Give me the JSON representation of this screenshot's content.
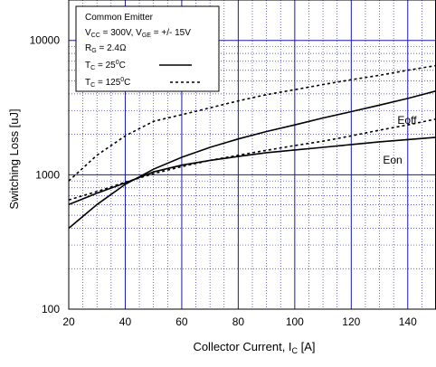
{
  "chart_data": {
    "type": "line",
    "title": "",
    "xlabel": "Collector Current, I",
    "xlabel_sub": "C",
    "xlabel_unit": " [A]",
    "ylabel": "Switching Loss [uJ]",
    "xlim": [
      20,
      150
    ],
    "ylim": [
      100,
      20000
    ],
    "yscale": "log",
    "grid": true,
    "x_ticks": [
      20,
      40,
      60,
      80,
      100,
      120,
      140
    ],
    "x_tick_labels": [
      "20",
      "40",
      "60",
      "80",
      "100",
      "120",
      "140"
    ],
    "y_ticks": [
      100,
      1000,
      10000
    ],
    "y_tick_labels": [
      "100",
      "1000",
      "10000"
    ],
    "legend": {
      "placement": "top-left",
      "title": "Common Emitter",
      "condition_1": {
        "vcc_pre": "V",
        "vcc_sub": "CC",
        "vcc_mid": " = 300V, V",
        "vge_sub": "GE",
        "vge_post": " = +/- 15V"
      },
      "condition_2": {
        "pre": "R",
        "sub": "G",
        "post": " = 2.4Ω"
      },
      "entry_solid": {
        "pre": "T",
        "sub": "C",
        "mid": " = 25",
        "sup": "0",
        "post": "C"
      },
      "entry_dashed": {
        "pre": "T",
        "sub": "C",
        "mid": " = 125",
        "sup": "0",
        "post": "C"
      }
    },
    "annotations": {
      "eoff": "Eoff",
      "eon": "Eon"
    },
    "series": [
      {
        "group": "Eoff",
        "condition": "25C",
        "style": "solid",
        "x": [
          20,
          30,
          40,
          50,
          60,
          70,
          80,
          90,
          100,
          110,
          120,
          130,
          140,
          150
        ],
        "y": [
          400,
          600,
          850,
          1100,
          1350,
          1600,
          1850,
          2100,
          2350,
          2650,
          2950,
          3300,
          3700,
          4200
        ]
      },
      {
        "group": "Eoff",
        "condition": "125C",
        "style": "dashed",
        "x": [
          20,
          30,
          40,
          50,
          60,
          70,
          80,
          90,
          100,
          110,
          120,
          130,
          140,
          150
        ],
        "y": [
          900,
          1400,
          1950,
          2500,
          2800,
          3150,
          3550,
          3950,
          4300,
          4700,
          5100,
          5500,
          6000,
          6500
        ]
      },
      {
        "group": "Eon",
        "condition": "25C",
        "style": "solid",
        "x": [
          20,
          30,
          40,
          50,
          60,
          70,
          80,
          90,
          100,
          110,
          120,
          130,
          140,
          150
        ],
        "y": [
          600,
          730,
          870,
          1050,
          1180,
          1280,
          1370,
          1460,
          1530,
          1600,
          1680,
          1760,
          1830,
          1900
        ]
      },
      {
        "group": "Eon",
        "condition": "125C",
        "style": "dashed",
        "x": [
          20,
          30,
          40,
          50,
          60,
          70,
          80,
          90,
          100,
          110,
          120,
          130,
          140,
          150
        ],
        "y": [
          650,
          750,
          880,
          1020,
          1150,
          1280,
          1400,
          1520,
          1650,
          1780,
          1950,
          2150,
          2350,
          2600
        ]
      }
    ]
  }
}
